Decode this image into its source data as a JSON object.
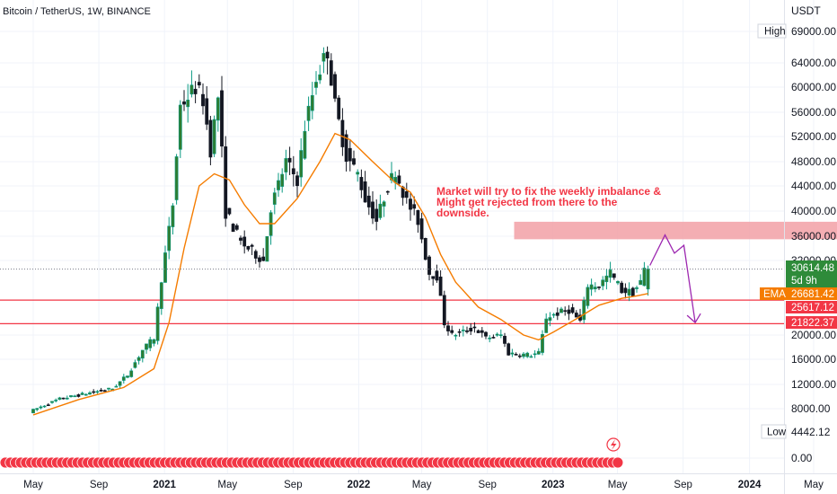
{
  "header": {
    "title": "Bitcoin / TetherUS, 1W, BINANCE",
    "currency": "USDT"
  },
  "chart_data": {
    "type": "candlestick",
    "symbol": "Bitcoin / TetherUS",
    "interval": "1W",
    "exchange": "BINANCE",
    "y_axis": {
      "unit": "USDT",
      "ylim": [
        -3000,
        73000
      ],
      "ticks": [
        "69000.00",
        "64000.00",
        "60000.00",
        "56000.00",
        "52000.00",
        "48000.00",
        "44000.00",
        "40000.00",
        "36000.00",
        "32000.00",
        "20000.00",
        "16000.00",
        "12000.00",
        "8000.00",
        "0.00"
      ]
    },
    "x_axis": {
      "ticks": [
        {
          "label": "May",
          "t": 0.0,
          "bold": false
        },
        {
          "label": "Sep",
          "t": 17.4,
          "bold": false
        },
        {
          "label": "2021",
          "t": 34.8,
          "bold": true
        },
        {
          "label": "May",
          "t": 51.5,
          "bold": false
        },
        {
          "label": "Sep",
          "t": 68.9,
          "bold": false
        },
        {
          "label": "2022",
          "t": 86.3,
          "bold": true
        },
        {
          "label": "May",
          "t": 103.0,
          "bold": false
        },
        {
          "label": "Sep",
          "t": 120.4,
          "bold": false
        },
        {
          "label": "2023",
          "t": 137.8,
          "bold": true
        },
        {
          "label": "May",
          "t": 154.9,
          "bold": false
        },
        {
          "label": "Sep",
          "t": 172.3,
          "bold": false
        },
        {
          "label": "2024",
          "t": 189.9,
          "bold": true
        },
        {
          "label": "May",
          "t": 206.9,
          "bold": false
        }
      ]
    },
    "price_path": [
      [
        0,
        7500
      ],
      [
        8,
        9600
      ],
      [
        16,
        10600
      ],
      [
        22,
        11300
      ],
      [
        26,
        13500
      ],
      [
        30,
        17500
      ],
      [
        33,
        19500
      ],
      [
        35,
        29000
      ],
      [
        38,
        41000
      ],
      [
        40,
        57000
      ],
      [
        44,
        60000
      ],
      [
        46,
        58000
      ],
      [
        48,
        50000
      ],
      [
        50,
        58500
      ],
      [
        52,
        40000
      ],
      [
        56,
        35000
      ],
      [
        60,
        33000
      ],
      [
        62,
        32000
      ],
      [
        64,
        40500
      ],
      [
        68,
        48000
      ],
      [
        71,
        45000
      ],
      [
        73,
        53500
      ],
      [
        76,
        61500
      ],
      [
        79,
        66000
      ],
      [
        81,
        57000
      ],
      [
        84,
        49000
      ],
      [
        87,
        46000
      ],
      [
        89,
        42000
      ],
      [
        92,
        38500
      ],
      [
        95,
        44000
      ],
      [
        97,
        46500
      ],
      [
        100,
        41500
      ],
      [
        103,
        38500
      ],
      [
        106,
        30000
      ],
      [
        108,
        29500
      ],
      [
        110,
        22000
      ],
      [
        112,
        20000
      ],
      [
        115,
        20500
      ],
      [
        118,
        21200
      ],
      [
        121,
        19500
      ],
      [
        125,
        20000
      ],
      [
        127,
        17000
      ],
      [
        130,
        16800
      ],
      [
        133,
        16700
      ],
      [
        135,
        17000
      ],
      [
        137,
        22800
      ],
      [
        140,
        23500
      ],
      [
        143,
        24000
      ],
      [
        146,
        22200
      ],
      [
        148,
        28000
      ],
      [
        151,
        28000
      ],
      [
        154,
        30000
      ],
      [
        157,
        27200
      ],
      [
        160,
        26800
      ],
      [
        162,
        28500
      ],
      [
        163,
        30614.48
      ]
    ],
    "ema_path": [
      [
        0,
        7000
      ],
      [
        12,
        9500
      ],
      [
        24,
        11500
      ],
      [
        32,
        14500
      ],
      [
        36,
        22000
      ],
      [
        40,
        34000
      ],
      [
        44,
        44000
      ],
      [
        48,
        46000
      ],
      [
        52,
        45000
      ],
      [
        56,
        41000
      ],
      [
        60,
        38000
      ],
      [
        64,
        38000
      ],
      [
        70,
        42000
      ],
      [
        76,
        48000
      ],
      [
        80,
        52500
      ],
      [
        84,
        51500
      ],
      [
        90,
        48000
      ],
      [
        96,
        44500
      ],
      [
        100,
        43000
      ],
      [
        104,
        39000
      ],
      [
        108,
        33000
      ],
      [
        112,
        28500
      ],
      [
        118,
        24500
      ],
      [
        124,
        22500
      ],
      [
        130,
        20000
      ],
      [
        134,
        19200
      ],
      [
        138,
        20500
      ],
      [
        144,
        22600
      ],
      [
        150,
        24800
      ],
      [
        156,
        25900
      ],
      [
        160,
        26300
      ],
      [
        163,
        26681.42
      ]
    ],
    "last_price": 30614.48,
    "countdown": "5d 9h",
    "ema_label": "EMA",
    "ema_value": 26681.42,
    "support_levels": [
      {
        "price": 25617.12,
        "label": "25617.12"
      },
      {
        "price": 21822.37,
        "label": "21822.37"
      }
    ],
    "high": {
      "label": "High",
      "price": 69000.0,
      "text": "69000.00"
    },
    "low": {
      "label": "Low",
      "price": 4442.12,
      "text": "4442.12"
    },
    "zone": {
      "t_start": 127.5,
      "t_end": 236.5,
      "price_low": 35500,
      "price_high": 38300
    },
    "annotation": {
      "lines": [
        "Market will try to fix the weekly imbalance &",
        "Might get rejected from there to the",
        "downside."
      ],
      "color": "#f23645"
    },
    "projection": [
      [
        163.5,
        31200
      ],
      [
        167.5,
        36200
      ],
      [
        170,
        33200
      ],
      [
        172.5,
        34500
      ],
      [
        175.5,
        22000
      ]
    ]
  },
  "colors": {
    "up": "#089981",
    "up_fill": "#2e7d32",
    "down": "#131722",
    "ema": "#f57c00",
    "support": "#f23645",
    "zone": "#f2a0a6",
    "projection": "#9c27b0",
    "last_price": "#2e8b3a"
  }
}
